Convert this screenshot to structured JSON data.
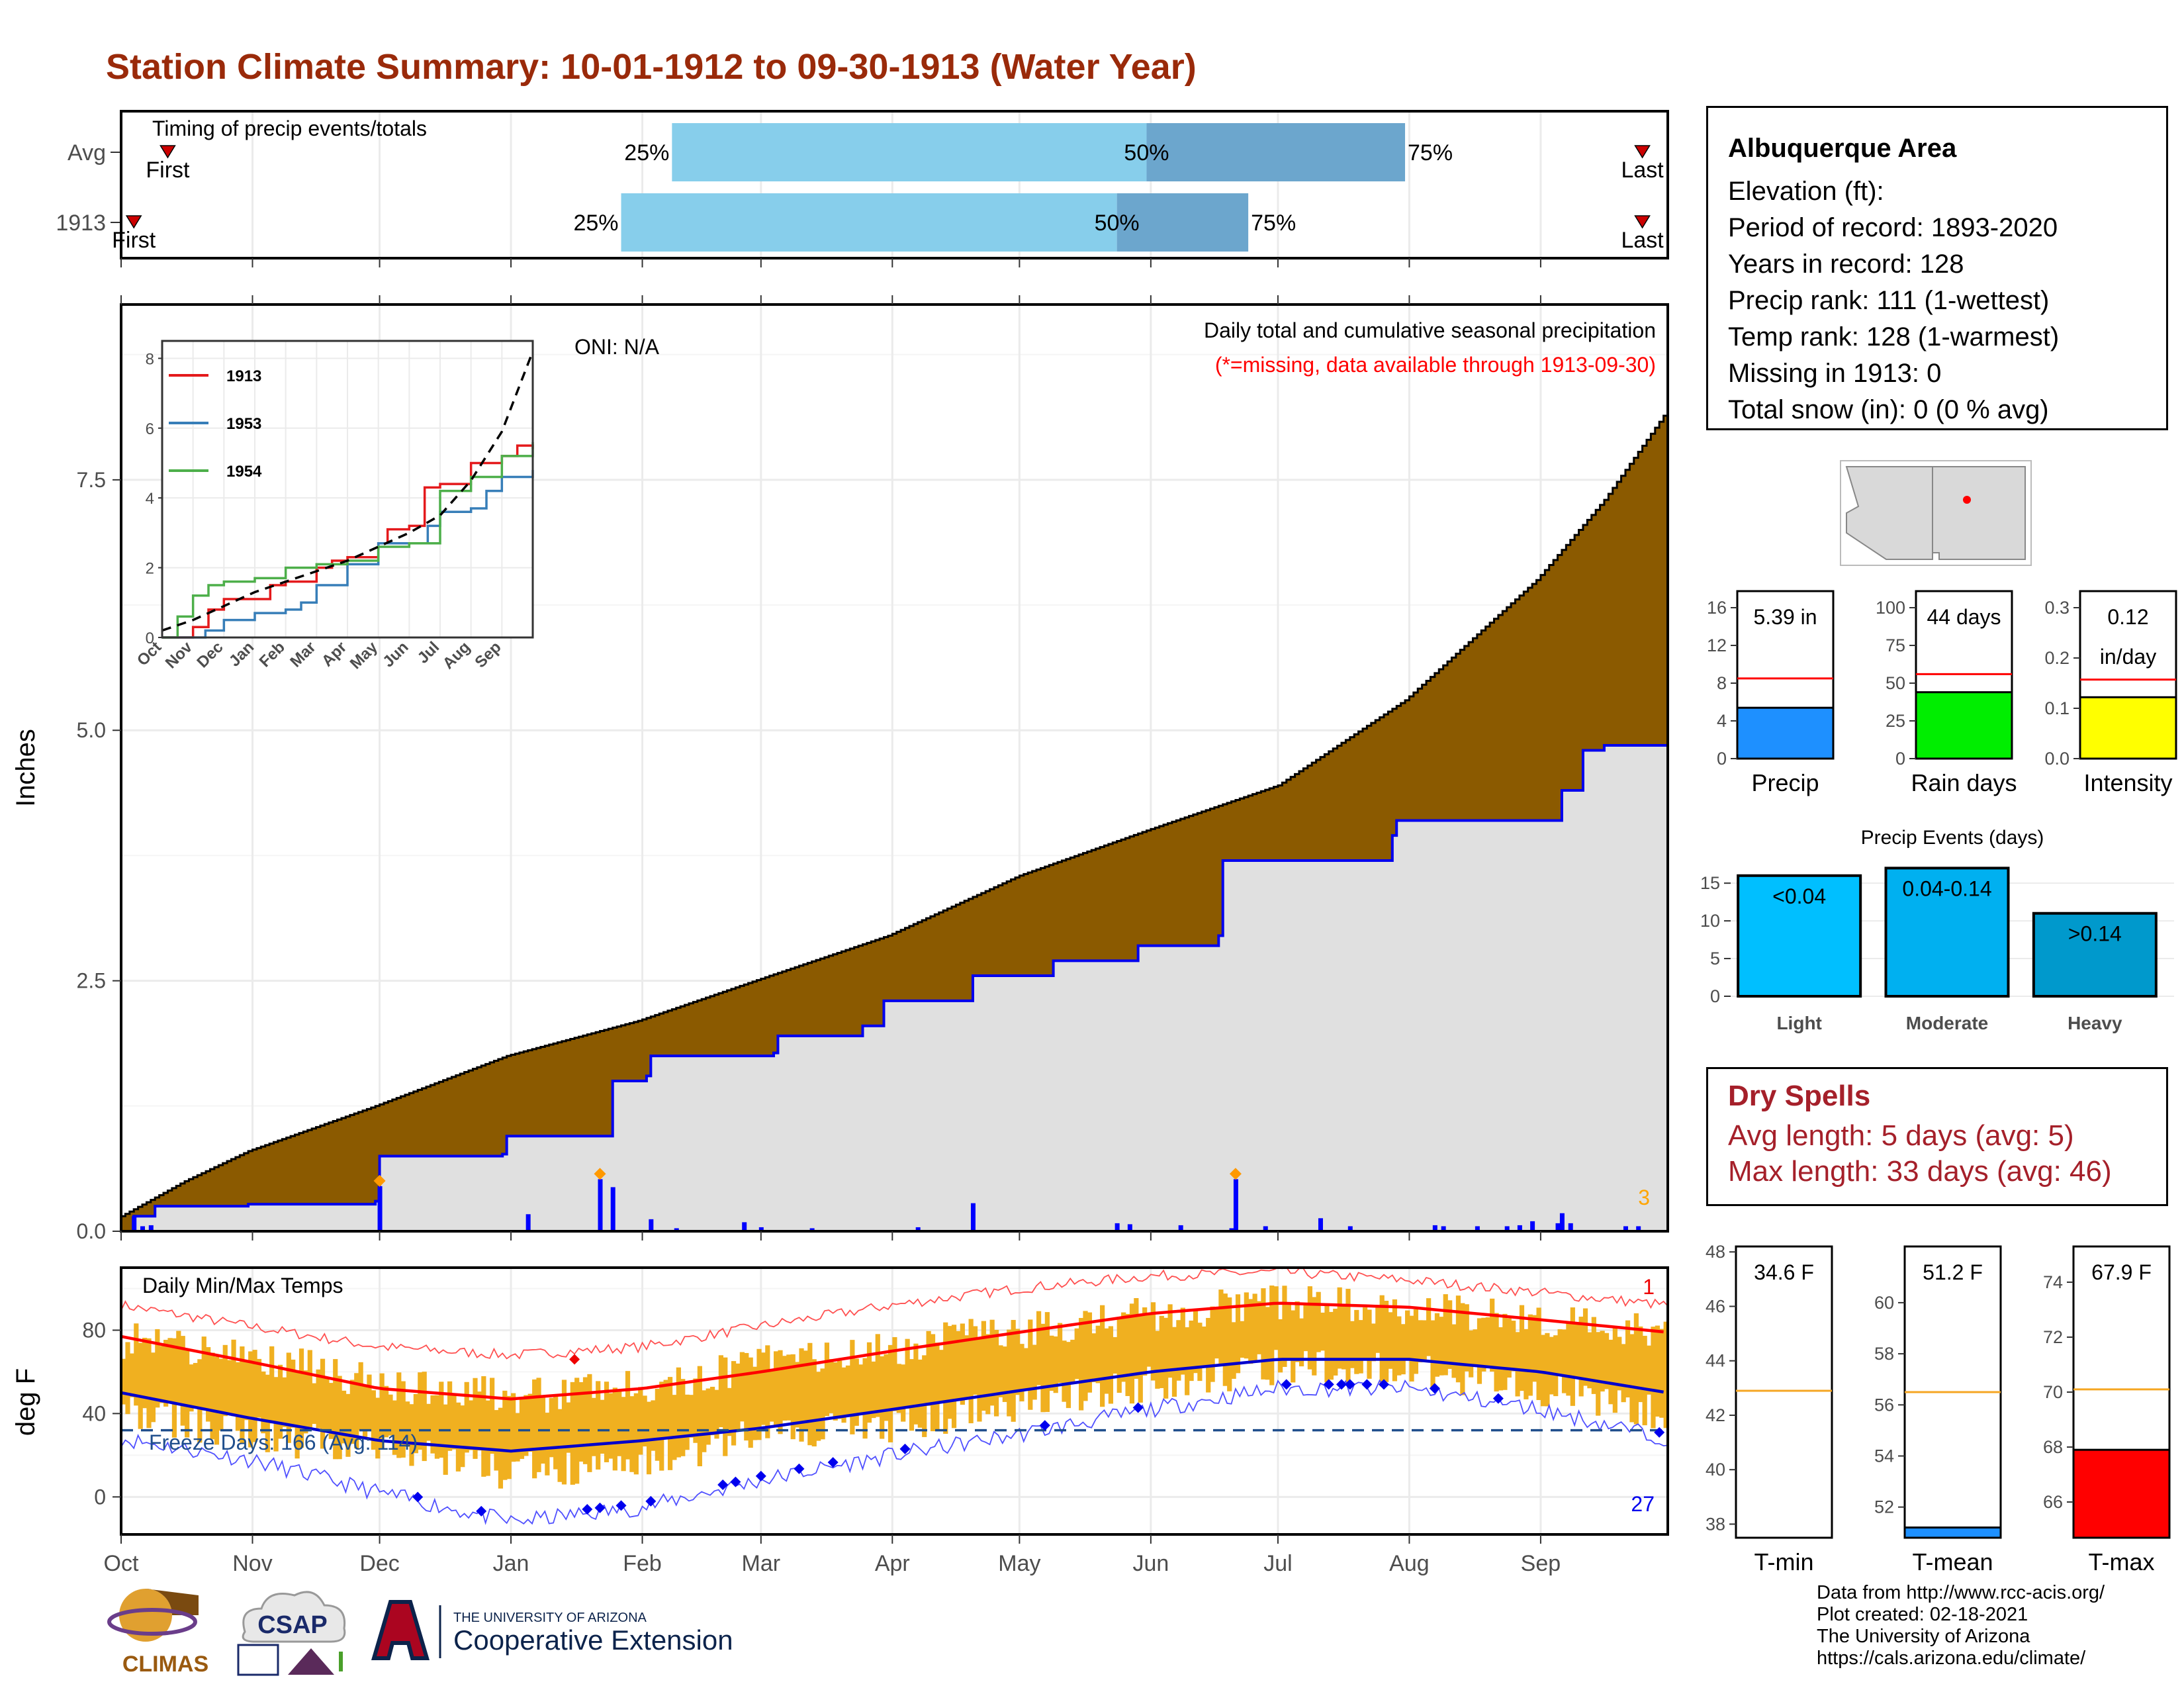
{
  "title": "Station Climate Summary: 10-01-1912 to 09-30-1913 (Water Year)",
  "timing": {
    "label": "Timing of precip events/totals",
    "rows": [
      {
        "name": "Avg",
        "first_label": "First",
        "last_label": "Last",
        "first_mark": "Oct 12",
        "last_mark": "Sep 25",
        "q25": "Feb 8",
        "q50": "May 31",
        "q75": "Jul 31",
        "q25_label": "25%",
        "q50_label": "50%",
        "q75_label": "75%"
      },
      {
        "name": "1913",
        "first_label": "First",
        "last_label": "Last",
        "first_mark": "Oct 4",
        "last_mark": "Sep 25",
        "q25": "Jan 27",
        "q50": "May 24",
        "q75": "Jun 24",
        "q25_label": "25%",
        "q50_label": "50%",
        "q75_label": "75%"
      }
    ]
  },
  "precip_panel": {
    "ylabel": "Inches",
    "oni": "ONI: N/A",
    "caption": "Daily total and cumulative seasonal precipitation",
    "missing_note": "(*=missing, data available through 1913-09-30)",
    "count_label": "3",
    "yticks": [
      "0.0",
      "2.5",
      "5.0",
      "7.5"
    ],
    "colors": {
      "avg_fill": "#8b5a00",
      "year_fill": "#e0e0e0",
      "year_line": "#0000ee",
      "bars": "#0000ff",
      "marker": "#ff9900"
    }
  },
  "inset": {
    "legend": [
      "1913",
      "1953",
      "1954"
    ],
    "legend_colors": [
      "#e41a1c",
      "#377eb8",
      "#4daf4a"
    ],
    "yticks": [
      "0",
      "2",
      "4",
      "6",
      "8"
    ],
    "months": [
      "Oct",
      "Nov",
      "Dec",
      "Jan",
      "Feb",
      "Mar",
      "Apr",
      "May",
      "Jun",
      "Jul",
      "Aug",
      "Sep"
    ]
  },
  "temp_panel": {
    "ylabel": "deg F",
    "label": "Daily Min/Max Temps",
    "freeze": "Freeze Days: 166 (Avg: 114)",
    "count_top": "1",
    "count_bottom": "27",
    "yticks": [
      "0",
      "40",
      "80"
    ],
    "months": [
      "Oct",
      "Nov",
      "Dec",
      "Jan",
      "Feb",
      "Mar",
      "Apr",
      "May",
      "Jun",
      "Jul",
      "Aug",
      "Sep"
    ],
    "colors": {
      "bars": "#f0b020",
      "max_avg": "#ff0000",
      "min_avg": "#0000cc",
      "freeze_line": "#1f4e8c"
    }
  },
  "station": {
    "name": "Albuquerque Area",
    "lines": [
      "Elevation (ft):",
      "Period of record: 1893-2020",
      "Years in record: 128",
      "Precip rank: 111 (1-wettest)",
      "Temp rank: 128 (1-warmest)",
      "Missing in 1913: 0",
      "Total snow (in): 0 (0 % avg)"
    ]
  },
  "summary_bars": [
    {
      "label": "Precip",
      "value_label": "5.39 in",
      "value": 5.39,
      "avg": 8.5,
      "ylim": [
        0,
        16
      ],
      "yticks": [
        "0",
        "4",
        "8",
        "12",
        "16"
      ],
      "color": "#1e90ff"
    },
    {
      "label": "Rain days",
      "value_label": "44 days",
      "value": 44,
      "avg": 56,
      "ylim": [
        0,
        100
      ],
      "yticks": [
        "0",
        "25",
        "50",
        "75",
        "100"
      ],
      "color": "#00ee00"
    },
    {
      "label": "Intensity",
      "value_label": "0.12",
      "value_label2": "in/day",
      "value": 0.122,
      "avg": 0.157,
      "ylim": [
        0,
        0.3
      ],
      "yticks": [
        "0.0",
        "0.1",
        "0.2",
        "0.3"
      ],
      "color": "#ffff00"
    }
  ],
  "events": {
    "title": "Precip Events (days)",
    "categories": [
      "Light",
      "Moderate",
      "Heavy"
    ],
    "labels": [
      "<0.04",
      "0.04-0.14",
      ">0.14"
    ],
    "values": [
      16,
      17,
      11
    ],
    "yticks": [
      "0",
      "5",
      "10",
      "15"
    ],
    "colors": [
      "#00bfff",
      "#00b0f0",
      "#0099cc"
    ]
  },
  "dry_spells": {
    "title": "Dry Spells",
    "avg": "Avg length: 5 days (avg: 5)",
    "max": "Max length: 33 days (avg: 46)"
  },
  "temp_bars": [
    {
      "label": "T-min",
      "value_label": "34.6 F",
      "value": 34.6,
      "avg": 42.9,
      "ylim": [
        37.5,
        48.2
      ],
      "yticks": [
        "38",
        "40",
        "42",
        "44",
        "46",
        "48"
      ],
      "color": "#1e90ff"
    },
    {
      "label": "T-mean",
      "value_label": "51.2 F",
      "value": 51.2,
      "avg": 56.5,
      "ylim": [
        50.8,
        62.2
      ],
      "yticks": [
        "52",
        "54",
        "56",
        "58",
        "60"
      ],
      "color": "#1e90ff"
    },
    {
      "label": "T-max",
      "value_label": "67.9 F",
      "value": 67.9,
      "avg": 70.1,
      "ylim": [
        64.7,
        75.3
      ],
      "yticks": [
        "66",
        "68",
        "70",
        "72",
        "74"
      ],
      "color": "#ff0000"
    }
  ],
  "footer": {
    "lines": [
      "Data from http://www.rcc-acis.org/",
      "Plot created: 02-18-2021",
      "The University of Arizona",
      "https://cals.arizona.edu/climate/"
    ]
  },
  "logos": {
    "climas": "CLIMAS",
    "csap": "CSAP",
    "ua_small": "THE UNIVERSITY OF ARIZONA",
    "ua_big": "Cooperative Extension"
  },
  "chart_data": [
    {
      "type": "area",
      "title": "Daily total and cumulative seasonal precipitation",
      "ylabel": "Inches",
      "ylim": [
        0,
        8.4
      ],
      "x_months": [
        "Oct",
        "Nov",
        "Dec",
        "Jan",
        "Feb",
        "Mar",
        "Apr",
        "May",
        "Jun",
        "Jul",
        "Aug",
        "Sep"
      ],
      "series": [
        {
          "name": "avg cumulative",
          "x_day": [
            0,
            15,
            30,
            60,
            91,
            122,
            153,
            181,
            212,
            242,
            273,
            303,
            334,
            350,
            365
          ],
          "values": [
            0.15,
            0.5,
            0.8,
            1.25,
            1.75,
            2.1,
            2.55,
            2.95,
            3.55,
            4.0,
            4.45,
            5.3,
            6.5,
            7.3,
            8.2
          ]
        },
        {
          "name": "1913 cumulative",
          "x_day": [
            0,
            3,
            8,
            30,
            60,
            61,
            90,
            91,
            115,
            116,
            124,
            125,
            154,
            155,
            175,
            180,
            200,
            201,
            220,
            240,
            259,
            260,
            280,
            300,
            301,
            320,
            340,
            345,
            350,
            365
          ],
          "values": [
            0.0,
            0.15,
            0.25,
            0.27,
            0.3,
            0.75,
            0.77,
            0.95,
            0.95,
            1.5,
            1.55,
            1.75,
            1.78,
            1.95,
            2.05,
            2.3,
            2.3,
            2.55,
            2.7,
            2.85,
            2.95,
            3.7,
            3.7,
            3.95,
            4.1,
            4.1,
            4.4,
            4.8,
            4.85,
            5.39
          ]
        }
      ],
      "daily_bars": {
        "x_day": [
          3,
          5,
          7,
          61,
          96,
          113,
          116,
          125,
          131,
          147,
          151,
          163,
          188,
          201,
          235,
          238,
          250,
          262,
          263,
          270,
          283,
          290,
          310,
          312,
          320,
          327,
          330,
          333,
          339,
          340,
          342,
          355,
          358
        ],
        "values": [
          0.15,
          0.05,
          0.06,
          0.45,
          0.17,
          0.52,
          0.44,
          0.12,
          0.03,
          0.09,
          0.04,
          0.03,
          0.04,
          0.28,
          0.08,
          0.07,
          0.06,
          0.03,
          0.52,
          0.05,
          0.13,
          0.05,
          0.06,
          0.05,
          0.05,
          0.05,
          0.06,
          0.1,
          0.08,
          0.18,
          0.08,
          0.05,
          0.05
        ]
      },
      "markers_day": [
        61,
        113,
        263
      ]
    },
    {
      "type": "line",
      "title": "",
      "series": [
        {
          "name": "1913",
          "x_month": [
            0,
            1,
            1.5,
            2,
            3,
            3.5,
            4,
            5,
            5.5,
            6,
            7,
            7.3,
            8,
            8.5,
            9,
            10,
            11,
            11.5,
            12
          ],
          "values": [
            0,
            0.3,
            0.8,
            1.1,
            1.1,
            1.5,
            1.6,
            2.0,
            2.2,
            2.3,
            2.7,
            3.1,
            3.2,
            4.3,
            4.4,
            5.0,
            5.2,
            5.5,
            5.4
          ]
        },
        {
          "name": "1953",
          "x_month": [
            0,
            1.4,
            2,
            3,
            4,
            4.5,
            5,
            6,
            7,
            8,
            8.6,
            9,
            10,
            10.5,
            11,
            12
          ],
          "values": [
            0,
            0.2,
            0.5,
            0.7,
            0.8,
            1.0,
            1.5,
            2.1,
            2.7,
            2.7,
            3.2,
            3.6,
            3.7,
            4.2,
            4.6,
            4.8
          ]
        },
        {
          "name": "1954",
          "x_month": [
            0,
            0.5,
            1,
            1.5,
            2,
            3,
            4,
            5,
            6,
            7,
            8,
            9,
            10,
            11,
            12
          ],
          "values": [
            0,
            0.6,
            1.2,
            1.5,
            1.6,
            1.7,
            2.0,
            2.1,
            2.2,
            2.6,
            2.7,
            4.2,
            4.6,
            5.2,
            5.6
          ]
        },
        {
          "name": "avg",
          "x_month": [
            0,
            1,
            2,
            3,
            4,
            5,
            6,
            7,
            8,
            9,
            10,
            11,
            12
          ],
          "values": [
            0.2,
            0.5,
            0.9,
            1.3,
            1.6,
            1.9,
            2.2,
            2.6,
            3.0,
            3.5,
            4.5,
            5.9,
            8.2
          ]
        }
      ],
      "xlabels": [
        "Oct",
        "Nov",
        "Dec",
        "Jan",
        "Feb",
        "Mar",
        "Apr",
        "May",
        "Jun",
        "Jul",
        "Aug",
        "Sep"
      ],
      "ylim": [
        0,
        8
      ]
    },
    {
      "type": "line",
      "title": "Daily Min/Max Temps",
      "ylabel": "deg F",
      "ylim": [
        -18,
        110
      ],
      "x_day": [
        0,
        30,
        61,
        92,
        123,
        151,
        182,
        212,
        243,
        273,
        304,
        335,
        365
      ],
      "series": [
        {
          "name": "avg max",
          "values": [
            77,
            65,
            52,
            47,
            52,
            60,
            70,
            79,
            88,
            93,
            91,
            85,
            79
          ]
        },
        {
          "name": "avg min",
          "values": [
            50,
            38,
            27,
            22,
            27,
            33,
            42,
            51,
            60,
            66,
            66,
            60,
            50
          ]
        },
        {
          "name": "record high",
          "values": [
            92,
            82,
            72,
            68,
            72,
            82,
            92,
            100,
            106,
            108,
            104,
            98,
            92
          ]
        },
        {
          "name": "record low",
          "values": [
            28,
            18,
            2,
            -12,
            -5,
            8,
            20,
            30,
            42,
            52,
            52,
            42,
            28
          ]
        },
        {
          "name": "1913 max",
          "values": [
            75,
            68,
            55,
            48,
            52,
            64,
            72,
            80,
            88,
            94,
            90,
            85,
            78
          ]
        },
        {
          "name": "1913 min",
          "values": [
            42,
            30,
            22,
            12,
            18,
            30,
            35,
            45,
            55,
            62,
            60,
            52,
            40
          ]
        }
      ],
      "freeze_line": 32
    }
  ]
}
